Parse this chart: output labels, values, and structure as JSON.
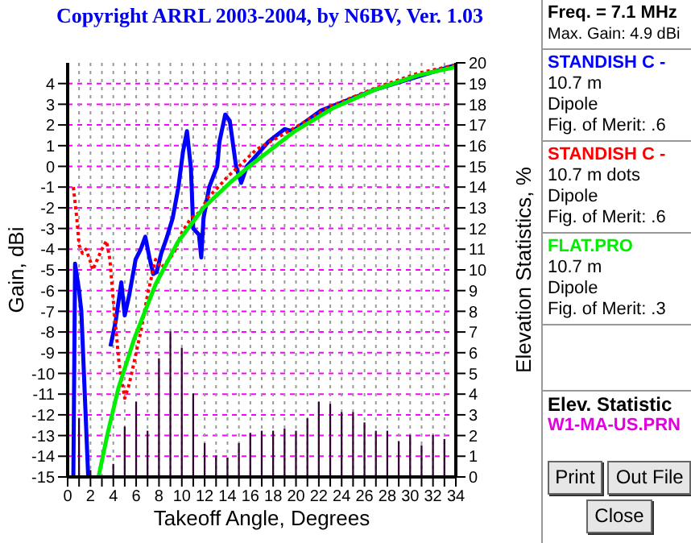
{
  "chart_data": {
    "type": "line",
    "title": "Copyright ARRL 2003-2004, by N6BV, Ver. 1.03",
    "xlabel": "Takeoff Angle, Degrees",
    "ylabel": "Gain, dBi",
    "y2label": "Elevation Statistics, %",
    "xlim": [
      0,
      34
    ],
    "xticks": [
      0,
      {
        "value": 1,
        "label": null
      },
      2,
      {
        "value": 3,
        "label": null
      },
      4,
      {
        "value": 5,
        "label": null
      },
      6,
      {
        "value": 7,
        "label": null
      },
      8,
      {
        "value": 9,
        "label": null
      },
      10,
      {
        "value": 11,
        "label": null
      },
      12,
      {
        "value": 13,
        "label": null
      },
      14,
      {
        "value": 15,
        "label": null
      },
      16,
      {
        "value": 17,
        "label": null
      },
      18,
      {
        "value": 19,
        "label": null
      },
      20,
      {
        "value": 21,
        "label": null
      },
      22,
      {
        "value": 23,
        "label": null
      },
      24,
      {
        "value": 25,
        "label": null
      },
      26,
      {
        "value": 27,
        "label": null
      },
      28,
      {
        "value": 29,
        "label": null
      },
      30,
      {
        "value": 31,
        "label": null
      },
      32,
      {
        "value": 33,
        "label": null
      },
      34
    ],
    "ylim": [
      -15,
      5
    ],
    "yticks": [
      -15,
      -14,
      -13,
      -12,
      -11,
      -10,
      -9,
      -8,
      -7,
      -6,
      -5,
      -4,
      -3,
      -2,
      -1,
      0,
      1,
      2,
      3,
      4
    ],
    "y2lim": [
      0,
      20
    ],
    "y2ticks": [
      0,
      1,
      2,
      3,
      4,
      5,
      6,
      7,
      8,
      9,
      10,
      11,
      12,
      13,
      14,
      15,
      16,
      17,
      18,
      19,
      20
    ],
    "grid": true,
    "legend": "right",
    "marker": "none",
    "series": [
      {
        "type": "bar",
        "axis": "y2",
        "name": "W1-MA-US.PRN",
        "color": "#800080",
        "x": [
          1,
          2,
          3,
          4,
          5,
          6,
          7,
          8,
          9,
          10,
          11,
          12,
          13,
          14,
          15,
          16,
          17,
          18,
          19,
          20,
          21,
          22,
          23,
          24,
          25,
          26,
          27,
          28,
          29,
          30,
          31,
          32,
          33
        ],
        "values": [
          2.8,
          0.3,
          null,
          0.6,
          2.4,
          3.6,
          2.2,
          5.7,
          7.0,
          6.2,
          4.0,
          1.6,
          1.0,
          0.9,
          1.6,
          2.1,
          2.2,
          2.2,
          2.3,
          2.2,
          2.8,
          3.6,
          3.5,
          3.1,
          3.1,
          2.6,
          2.2,
          2.2,
          1.7,
          2.0,
          1.5,
          2.0,
          1.8
        ]
      },
      {
        "name": "STANDISH C -",
        "color": "#0000ff",
        "line_style": "solid",
        "x": [
          0.5,
          0.65,
          1.0,
          1.2,
          1.5,
          1.8,
          3.5,
          3.75,
          4.2,
          4.7,
          5.0,
          5.4,
          5.95,
          6.4,
          6.8,
          7.2,
          7.5,
          7.8,
          8.2,
          8.65,
          9.2,
          9.7,
          10.1,
          10.45,
          10.8,
          11.0,
          11.5,
          11.7,
          11.9,
          12.4,
          13.1,
          13.3,
          13.8,
          14.2,
          14.75,
          15.2,
          15.7,
          17.6,
          19.0,
          19.7,
          22.2,
          26.9,
          34
        ],
        "values": [
          -15,
          -4.7,
          -6,
          -7,
          -11,
          -15,
          null,
          -8.7,
          -7.5,
          -5.6,
          -7.2,
          -6.2,
          -4.5,
          -4.0,
          -3.4,
          -4.5,
          -5.2,
          -5.1,
          -4.2,
          -3.5,
          -2.5,
          -1.0,
          0.7,
          1.7,
          -0.1,
          -3,
          -3.3,
          -4.4,
          -2.5,
          -1,
          0,
          1.2,
          2.5,
          2.2,
          0,
          -0.8,
          0,
          1.2,
          1.8,
          1.7,
          2.7,
          3.7,
          4.9
        ]
      },
      {
        "name": "STANDISH C -",
        "color": "#ff0000",
        "line_style": "dotted",
        "x": [
          0.5,
          0.8,
          1.0,
          1.3,
          1.6,
          2.0,
          2.2,
          2.6,
          3.0,
          3.4,
          3.7,
          4.0,
          4.5,
          5.0,
          5.4,
          5.8,
          6.4,
          7.0,
          7.4,
          7.7,
          8.2,
          8.7,
          9.3,
          10.0,
          10.8,
          11.6,
          12.3,
          13.2,
          14.0,
          15.0,
          16.5,
          20.0,
          23.0,
          27.0,
          30.7,
          34
        ],
        "values": [
          -1,
          -2.5,
          -3.8,
          -4.2,
          -4.0,
          -4.6,
          -5.0,
          -4.5,
          -4.0,
          -3.6,
          -4.5,
          -6.5,
          -9.5,
          -11.2,
          -10.5,
          -9.5,
          -8,
          -6.2,
          -5.2,
          -4.5,
          -4.9,
          -4.6,
          -4.2,
          -3.2,
          -2.5,
          -2.2,
          -1.5,
          -1.0,
          -0.5,
          0,
          0.8,
          1.9,
          2.9,
          3.8,
          4.5,
          4.9
        ]
      },
      {
        "name": "FLAT.PRO",
        "color": "#00ee00",
        "line_style": "solid",
        "x": [
          2.7,
          3.5,
          4.45,
          5.85,
          7.7,
          9.6,
          11.9,
          14.3,
          15.9,
          19.9,
          23.2,
          26.9,
          30.7,
          34
        ],
        "values": [
          -15,
          -12.9,
          -10.7,
          -8.3,
          -5.7,
          -3.7,
          -2,
          -0.75,
          0,
          1.7,
          2.8,
          3.7,
          4.4,
          4.8
        ]
      }
    ],
    "annotations": [
      "Freq. = 7.1 MHz",
      "Max. Gain: 4.9 dBi",
      "10.7 m",
      "Dipole",
      "Fig. of Merit: .6",
      "10.7 m dots",
      "Dipole",
      "Fig. of Merit: .6",
      "10.7 m",
      "Dipole",
      "Fig. of Merit: .3",
      "Elev. Statistic",
      "Print",
      "Out File",
      "Close"
    ]
  }
}
